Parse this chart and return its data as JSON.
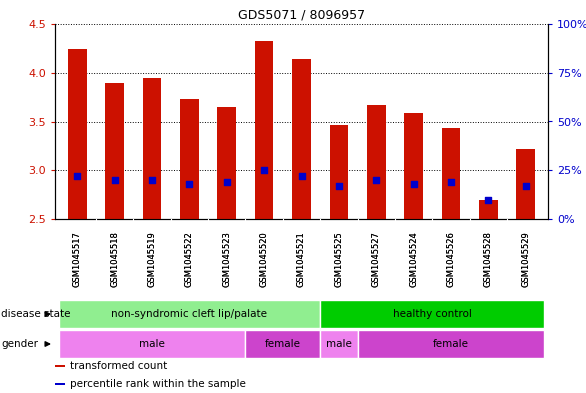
{
  "title": "GDS5071 / 8096957",
  "samples": [
    "GSM1045517",
    "GSM1045518",
    "GSM1045519",
    "GSM1045522",
    "GSM1045523",
    "GSM1045520",
    "GSM1045521",
    "GSM1045525",
    "GSM1045527",
    "GSM1045524",
    "GSM1045526",
    "GSM1045528",
    "GSM1045529"
  ],
  "transformed_count": [
    4.24,
    3.9,
    3.95,
    3.73,
    3.65,
    4.33,
    4.14,
    3.46,
    3.67,
    3.59,
    3.43,
    2.69,
    3.22
  ],
  "percentile_rank": [
    22,
    20,
    20,
    18,
    19,
    25,
    22,
    17,
    20,
    18,
    19,
    10,
    17
  ],
  "ylim_left": [
    2.5,
    4.5
  ],
  "ylim_right": [
    0,
    100
  ],
  "yticks_left": [
    2.5,
    3.0,
    3.5,
    4.0,
    4.5
  ],
  "yticks_right": [
    0,
    25,
    50,
    75,
    100
  ],
  "ytick_labels_right": [
    "0%",
    "25%",
    "50%",
    "75%",
    "100%"
  ],
  "disease_state_groups": [
    {
      "label": "non-syndromic cleft lip/palate",
      "start": 0,
      "end": 7,
      "color": "#90EE90"
    },
    {
      "label": "healthy control",
      "start": 7,
      "end": 13,
      "color": "#00CC00"
    }
  ],
  "gender_groups": [
    {
      "label": "male",
      "start": 0,
      "end": 5,
      "color": "#EE82EE"
    },
    {
      "label": "female",
      "start": 5,
      "end": 7,
      "color": "#CC44CC"
    },
    {
      "label": "male",
      "start": 7,
      "end": 8,
      "color": "#EE82EE"
    },
    {
      "label": "female",
      "start": 8,
      "end": 13,
      "color": "#CC44CC"
    }
  ],
  "bar_color": "#CC1100",
  "dot_color": "#0000CC",
  "bar_width": 0.5,
  "background_color": "#FFFFFF",
  "ax_background": "#FFFFFF",
  "legend_items": [
    "transformed count",
    "percentile rank within the sample"
  ],
  "legend_colors": [
    "#CC1100",
    "#0000CC"
  ],
  "ylabel_left_color": "#CC1100",
  "ylabel_right_color": "#0000CC",
  "xtick_bg_color": "#CCCCCC"
}
